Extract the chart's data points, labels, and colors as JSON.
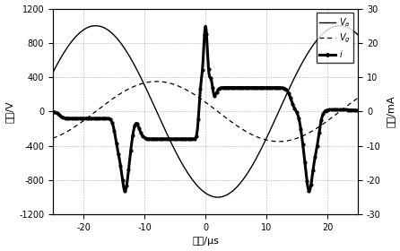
{
  "title": "",
  "xlabel": "时间/μs",
  "ylabel_left": "电压/V",
  "ylabel_right": "电流/mA",
  "xlim": [
    -25,
    25
  ],
  "ylim_left": [
    -1200,
    1200
  ],
  "ylim_right": [
    -30,
    30
  ],
  "xticks": [
    -20,
    -10,
    0,
    10,
    20
  ],
  "yticks_left": [
    -1200,
    -800,
    -400,
    0,
    400,
    800,
    1200
  ],
  "yticks_right": [
    -30,
    -20,
    -10,
    0,
    10,
    20,
    30
  ],
  "Va_amplitude": 1000,
  "Va_freq": 0.025,
  "Va_phase_deg": -108,
  "Vg_amplitude": 350,
  "Vg_freq": 0.025,
  "Vg_phase_deg": -198,
  "i_scale_factor": 40,
  "background_color": "#ffffff",
  "grid_color": "#999999"
}
